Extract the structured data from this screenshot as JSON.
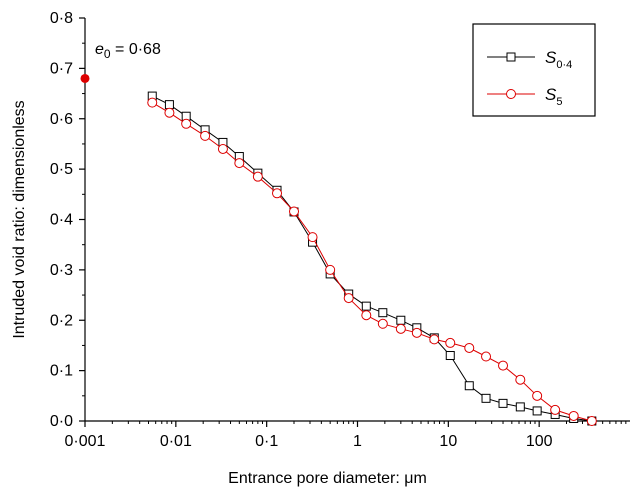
{
  "chart_data": {
    "type": "line",
    "xlabel": "Entrance pore diameter: μm",
    "ylabel": "Intruded void ratio: dimensionless",
    "xscale": "log",
    "xlim": [
      0.001,
      1000
    ],
    "ylim": [
      0,
      0.8
    ],
    "xticks": [
      {
        "value": 0.001,
        "label": "0·001"
      },
      {
        "value": 0.01,
        "label": "0·01"
      },
      {
        "value": 0.1,
        "label": "0·1"
      },
      {
        "value": 1,
        "label": "1"
      },
      {
        "value": 10,
        "label": "10"
      },
      {
        "value": 100,
        "label": "100"
      }
    ],
    "yticks": [
      {
        "value": 0.0,
        "label": "0·0"
      },
      {
        "value": 0.1,
        "label": "0·1"
      },
      {
        "value": 0.2,
        "label": "0·2"
      },
      {
        "value": 0.3,
        "label": "0·3"
      },
      {
        "value": 0.4,
        "label": "0·4"
      },
      {
        "value": 0.5,
        "label": "0·5"
      },
      {
        "value": 0.6,
        "label": "0·6"
      },
      {
        "value": 0.7,
        "label": "0·7"
      },
      {
        "value": 0.8,
        "label": "0·8"
      }
    ],
    "grid": false,
    "legend_position": "top-right",
    "annotation": {
      "symbol": "e",
      "subscript": "0",
      "text": " = 0·68",
      "x": 0.001,
      "y": 0.68,
      "marker_color": "#dd0000"
    },
    "series": [
      {
        "name_main": "S",
        "name_sub": "0·4",
        "color": "#000000",
        "marker": "square",
        "x": [
          0.0055,
          0.0085,
          0.013,
          0.021,
          0.033,
          0.05,
          0.08,
          0.13,
          0.2,
          0.32,
          0.5,
          0.8,
          1.25,
          1.9,
          3.0,
          4.5,
          7.0,
          10.5,
          17,
          26,
          40,
          62,
          95,
          150,
          240,
          380
        ],
        "y": [
          0.645,
          0.628,
          0.605,
          0.578,
          0.553,
          0.525,
          0.492,
          0.458,
          0.415,
          0.355,
          0.292,
          0.252,
          0.228,
          0.215,
          0.2,
          0.185,
          0.165,
          0.13,
          0.07,
          0.045,
          0.035,
          0.028,
          0.02,
          0.013,
          0.005,
          0.0
        ]
      },
      {
        "name_main": "S",
        "name_sub": "5",
        "color": "#dd0000",
        "marker": "circle",
        "x": [
          0.0055,
          0.0085,
          0.013,
          0.021,
          0.033,
          0.05,
          0.08,
          0.13,
          0.2,
          0.32,
          0.5,
          0.8,
          1.25,
          1.9,
          3.0,
          4.5,
          7.0,
          10.5,
          17,
          26,
          40,
          62,
          95,
          150,
          240,
          380
        ],
        "y": [
          0.632,
          0.612,
          0.59,
          0.566,
          0.54,
          0.512,
          0.485,
          0.452,
          0.416,
          0.365,
          0.3,
          0.244,
          0.21,
          0.193,
          0.183,
          0.175,
          0.162,
          0.155,
          0.145,
          0.128,
          0.11,
          0.082,
          0.05,
          0.022,
          0.01,
          0.0
        ]
      }
    ]
  }
}
